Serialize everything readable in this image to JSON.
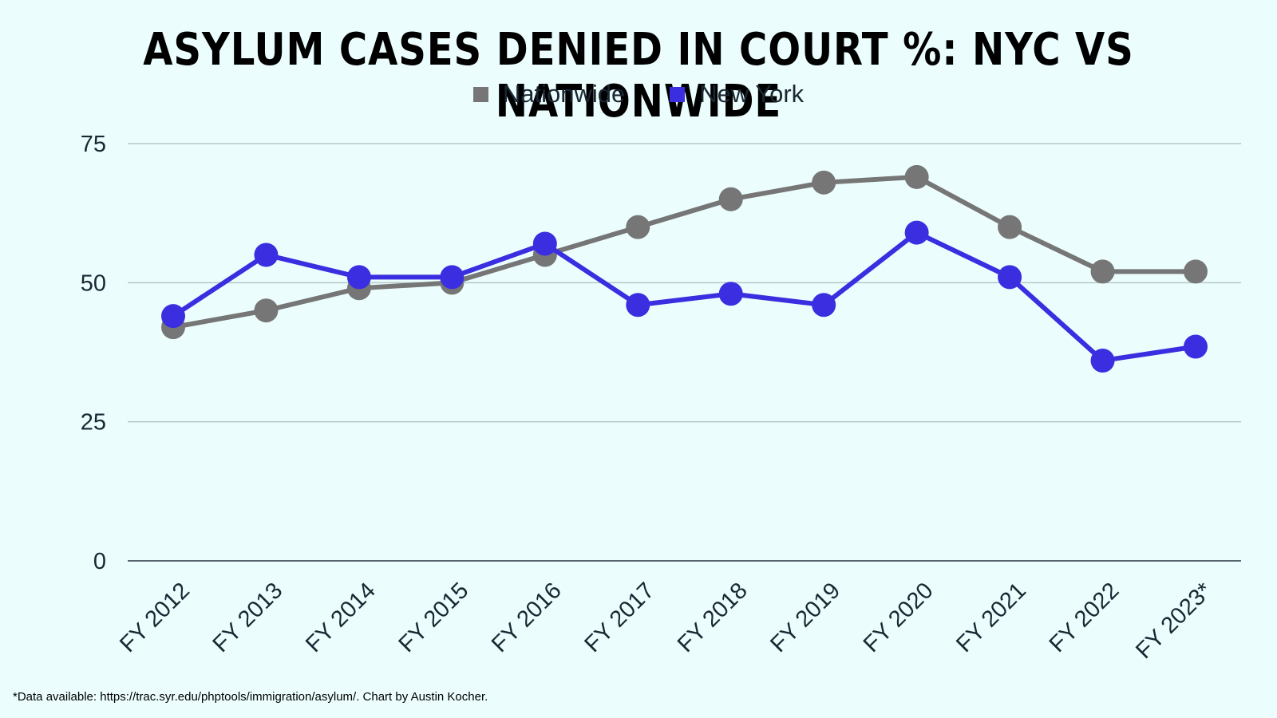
{
  "chart_data": {
    "type": "line",
    "title": "ASYLUM CASES DENIED IN COURT %: NYC VS NATIONWIDE",
    "categories": [
      "FY 2012",
      "FY 2013",
      "FY 2014",
      "FY 2015",
      "FY 2016",
      "FY 2017",
      "FY 2018",
      "FY 2019",
      "FY 2020",
      "FY 2021",
      "FY 2022",
      "FY 2023*"
    ],
    "series": [
      {
        "name": "Nationwide",
        "color": "#767676",
        "values": [
          42,
          45,
          49,
          50,
          55,
          60,
          65,
          68,
          69,
          60,
          52,
          52
        ]
      },
      {
        "name": "New York",
        "color": "#3b2ee0",
        "values": [
          44,
          55,
          51,
          51,
          57,
          46,
          48,
          46,
          59,
          51,
          36,
          38.5
        ]
      }
    ],
    "ylim": [
      0,
      75
    ],
    "yticks": [
      0,
      25,
      50,
      75
    ],
    "grid": true,
    "legend_position": "top-center",
    "footnote": "*Data available: https://trac.syr.edu/phptools/immigration/asylum/. Chart by Austin Kocher."
  }
}
